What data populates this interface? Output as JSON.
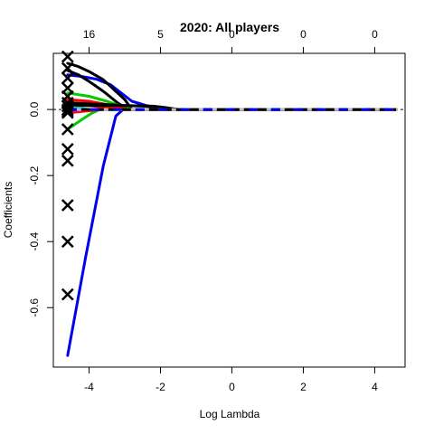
{
  "chart_data": {
    "type": "line",
    "title": "2020: All players",
    "xlabel": "Log Lambda",
    "ylabel": "Coefficients",
    "xlim": [
      -5.0,
      4.85
    ],
    "ylim": [
      -0.78,
      0.17
    ],
    "x_ticks": [
      "-4",
      "-2",
      "0",
      "2",
      "4"
    ],
    "x_tick_values": [
      -4,
      -2,
      0,
      2,
      4
    ],
    "y_ticks": [
      "-0.6",
      "-0.4",
      "-0.2",
      "0.0"
    ],
    "y_tick_values": [
      -0.6,
      -0.4,
      -0.2,
      0.0
    ],
    "top_ticks": [
      "16",
      "5",
      "0",
      "0",
      "0"
    ],
    "top_tick_values": [
      -4,
      -2,
      0,
      2,
      4
    ],
    "grid": false,
    "legend": "none",
    "zero_line": {
      "y": 0,
      "color": "#000000",
      "style": "dashed"
    },
    "series": [
      {
        "color": "#0000ee",
        "x": [
          -4.6,
          -4.1,
          -3.6,
          -3.25,
          -3.05,
          -2.9,
          4.6
        ],
        "y": [
          -0.745,
          -0.45,
          -0.17,
          -0.02,
          0.0,
          0.0,
          0.0
        ]
      },
      {
        "color": "#0000ee",
        "x": [
          -4.6,
          -4.2,
          -3.8,
          -3.4,
          -3.1,
          -2.8,
          -2.4,
          -2.0,
          -1.7,
          4.6
        ],
        "y": [
          0.105,
          0.1,
          0.092,
          0.075,
          0.05,
          0.025,
          0.012,
          0.004,
          0.0,
          0.0
        ]
      },
      {
        "color": "#000000",
        "x": [
          -4.6,
          -4.3,
          -4.0,
          -3.6,
          -3.3,
          -3.0,
          -2.8,
          4.6
        ],
        "y": [
          0.14,
          0.13,
          0.115,
          0.09,
          0.06,
          0.03,
          0.0,
          0.0
        ]
      },
      {
        "color": "#000000",
        "x": [
          -4.6,
          -4.3,
          -4.0,
          -3.6,
          -3.2,
          -2.9,
          4.6
        ],
        "y": [
          0.118,
          0.105,
          0.085,
          0.055,
          0.02,
          0.0,
          0.0
        ]
      },
      {
        "color": "#00cc00",
        "x": [
          -4.6,
          -4.0,
          -3.5,
          -3.1,
          -2.8,
          4.6
        ],
        "y": [
          0.05,
          0.04,
          0.025,
          0.01,
          0.0,
          0.0
        ]
      },
      {
        "color": "#00cc00",
        "x": [
          -4.6,
          -4.2,
          -3.9,
          -3.7,
          4.6
        ],
        "y": [
          -0.06,
          -0.03,
          -0.01,
          0.0,
          0.0
        ]
      },
      {
        "color": "#00cc00",
        "x": [
          -4.6,
          -4.0,
          -3.4,
          -3.0,
          4.6
        ],
        "y": [
          0.02,
          0.015,
          0.005,
          0.0,
          0.0
        ]
      },
      {
        "color": "#ff0000",
        "x": [
          -4.6,
          -4.0,
          -3.5,
          -3.1,
          -2.9,
          4.6
        ],
        "y": [
          0.03,
          0.025,
          0.015,
          0.005,
          0.0,
          0.0
        ]
      },
      {
        "color": "#ff0000",
        "x": [
          -4.6,
          -4.0,
          -3.5,
          -3.1,
          4.6
        ],
        "y": [
          0.015,
          0.012,
          0.006,
          0.0,
          0.0
        ]
      },
      {
        "color": "#ff0000",
        "x": [
          -4.6,
          -4.1,
          -3.6,
          4.6
        ],
        "y": [
          -0.01,
          -0.005,
          0.0,
          0.0
        ]
      },
      {
        "color": "#000000",
        "x": [
          -4.6,
          -3.5,
          -3.0,
          -2.5,
          -2.0,
          -1.7,
          -1.5,
          4.6
        ],
        "y": [
          0.02,
          0.015,
          0.012,
          0.01,
          0.006,
          0.003,
          0.0,
          0.0
        ]
      },
      {
        "color": "#000000",
        "x": [
          -4.6,
          -3.0,
          -2.2,
          -1.8,
          -1.5,
          4.6
        ],
        "y": [
          0.012,
          0.012,
          0.01,
          0.005,
          0.0,
          0.0
        ]
      },
      {
        "color": "#ff00ff",
        "x": [
          -4.6,
          -4.3,
          -4.1,
          4.6
        ],
        "y": [
          -0.005,
          -0.002,
          0.0,
          0.0
        ]
      },
      {
        "color": "#00cccc",
        "x": [
          -4.6,
          -4.2,
          -4.0,
          4.6
        ],
        "y": [
          0.008,
          0.003,
          0.0,
          0.0
        ]
      },
      {
        "color": "#bebebe",
        "x": [
          -4.6,
          -4.3,
          4.6
        ],
        "y": [
          0.004,
          0.0,
          0.0
        ]
      }
    ],
    "markers": {
      "symbol": "x",
      "x": -4.6,
      "y": [
        0.16,
        0.125,
        0.095,
        0.065,
        0.04,
        0.02,
        0.01,
        0.0,
        -0.005,
        -0.01,
        -0.06,
        -0.12,
        -0.155,
        -0.29,
        -0.4,
        -0.56
      ]
    }
  }
}
